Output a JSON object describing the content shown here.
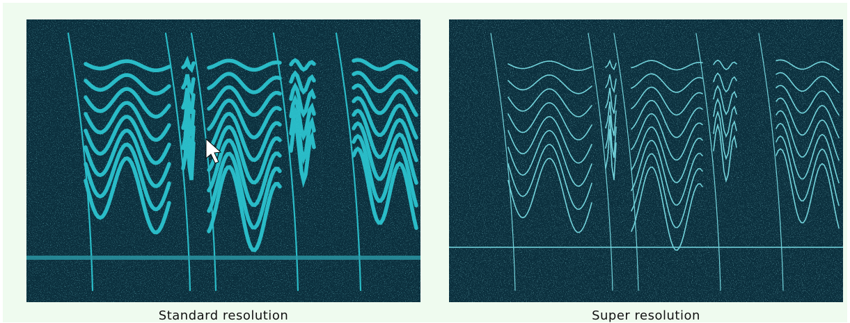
{
  "panels": [
    {
      "caption": "Standard resolution"
    },
    {
      "caption": "Super resolution"
    }
  ]
}
